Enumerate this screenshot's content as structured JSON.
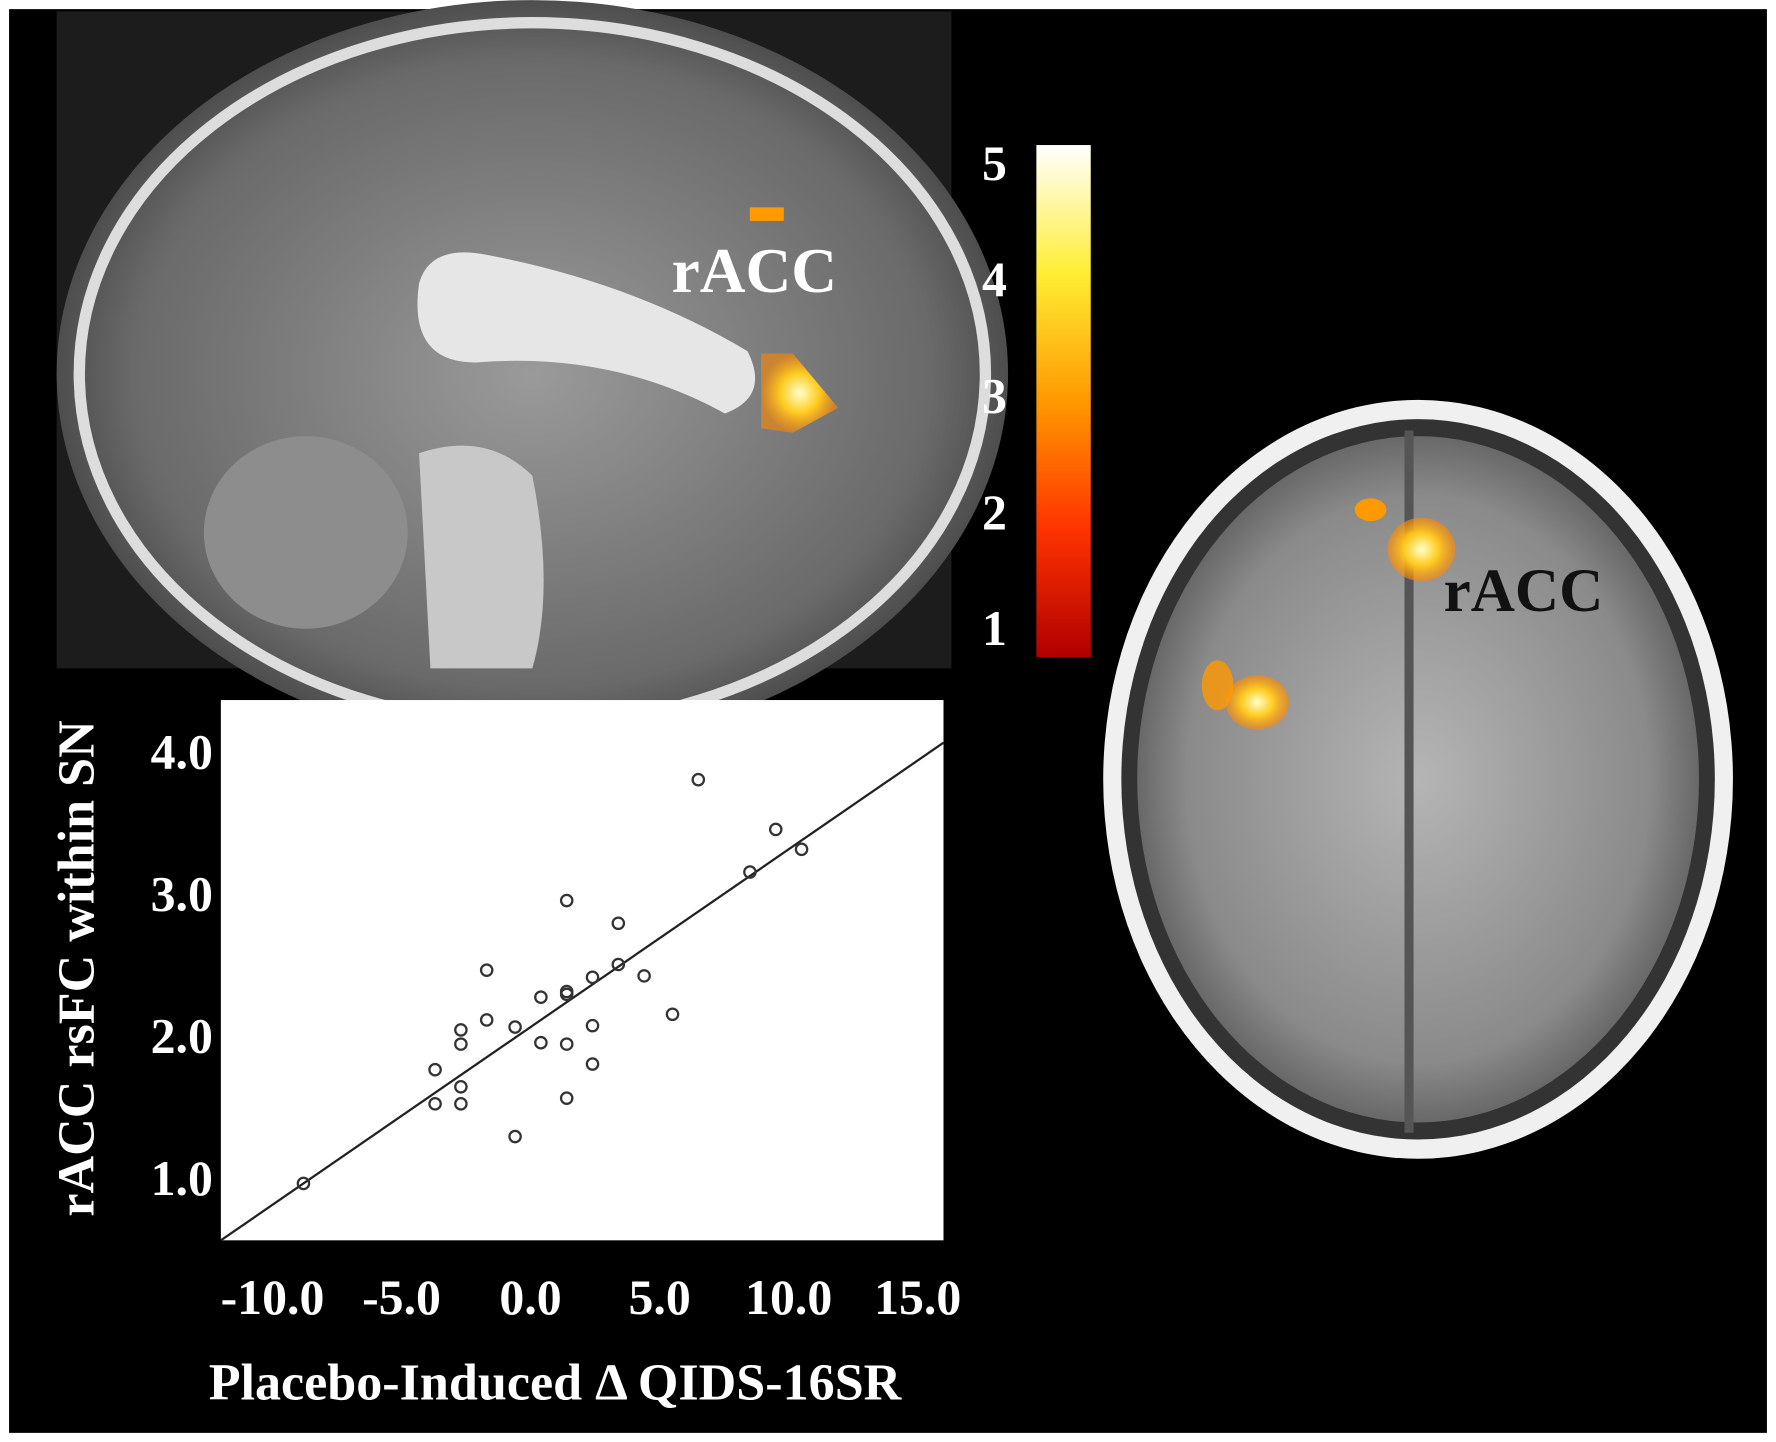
{
  "chart_data": [
    {
      "type": "scatter",
      "x_label": "Placebo-Induced Δ QIDS-16SR",
      "y_label": "rACC  rsFC within SN",
      "x": [
        -8.8,
        -3.7,
        -3.7,
        -2.7,
        -2.7,
        -2.7,
        -2.7,
        -1.7,
        -1.7,
        -0.6,
        -0.6,
        0.4,
        0.4,
        1.4,
        1.4,
        1.4,
        1.4,
        1.4,
        2.4,
        2.4,
        2.4,
        3.4,
        3.4,
        4.4,
        5.5,
        6.5,
        8.5,
        9.5,
        10.5
      ],
      "values": [
        1.0,
        1.8,
        1.56,
        2.08,
        1.98,
        1.68,
        1.56,
        2.5,
        2.15,
        2.1,
        1.33,
        2.31,
        1.99,
        2.99,
        2.35,
        2.33,
        1.98,
        1.6,
        2.45,
        2.11,
        1.84,
        2.83,
        2.54,
        2.46,
        2.19,
        3.84,
        3.19,
        3.49,
        3.35
      ],
      "fit_line": {
        "x": [
          -12,
          16
        ],
        "values": [
          0.6,
          4.1
        ]
      },
      "color": "#333333",
      "xlim": [
        -12,
        16
      ],
      "ylim": [
        0.6,
        4.4
      ],
      "xticks": [
        {
          "value": -10,
          "label": "-10.0"
        },
        {
          "value": -5,
          "label": "-5.0"
        },
        {
          "value": 0,
          "label": "0.0"
        },
        {
          "value": 5,
          "label": "5.0"
        },
        {
          "value": 10,
          "label": "10.0"
        },
        {
          "value": 15,
          "label": "15.0"
        }
      ],
      "yticks": [
        {
          "value": 1,
          "label": "1.0"
        },
        {
          "value": 2,
          "label": "2.0"
        },
        {
          "value": 3,
          "label": "3.0"
        },
        {
          "value": 4,
          "label": "4.0"
        }
      ],
      "grid": false
    },
    {
      "type": "colorbar",
      "ylim": [
        0.8,
        5.2
      ],
      "yticks": [
        1,
        2,
        3,
        4,
        5
      ],
      "colors": [
        "#b00000",
        "#ff3300",
        "#ff9900",
        "#ffee33",
        "#ffffff"
      ]
    }
  ],
  "annotations": [
    "rACC",
    "rACC"
  ]
}
